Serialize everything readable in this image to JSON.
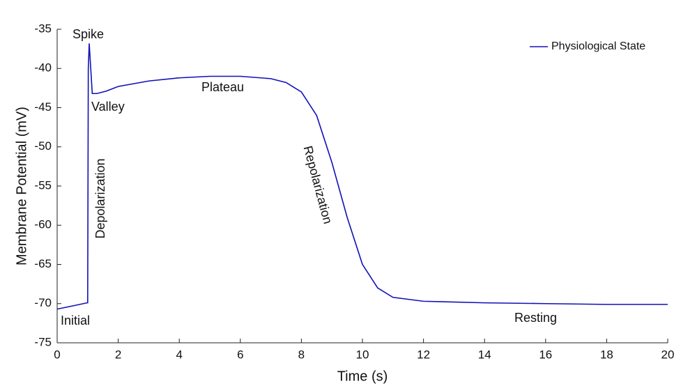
{
  "chart_data": {
    "type": "line",
    "x_label": "Time (s)",
    "y_label": "Membrane Potential (mV)",
    "x": [
      0,
      0.5,
      0.98,
      1.0,
      1.02,
      1.05,
      1.1,
      1.15,
      1.3,
      1.6,
      2,
      3,
      4,
      5,
      6,
      7,
      7.5,
      8,
      8.5,
      9,
      9.5,
      10,
      10.5,
      11,
      12,
      14,
      16,
      18,
      20
    ],
    "series": [
      {
        "name": "Physiological State",
        "color": "#1010b8",
        "values": [
          -70.7,
          -70.3,
          -69.9,
          -69.9,
          -40,
          -36.8,
          -40,
          -43.2,
          -43.2,
          -42.9,
          -42.3,
          -41.6,
          -41.2,
          -41.0,
          -41.0,
          -41.3,
          -41.8,
          -43,
          -46,
          -52,
          -59,
          -65,
          -68,
          -69.2,
          -69.7,
          -69.9,
          -70.0,
          -70.1,
          -70.1
        ]
      }
    ],
    "annotations": [
      "Spike",
      "Valley",
      "Plateau",
      "Depolarization",
      "Repolarization",
      "Initial",
      "Resting"
    ],
    "xlim": [
      0,
      20
    ],
    "xticks": [
      0,
      2,
      4,
      6,
      8,
      10,
      12,
      14,
      16,
      18,
      20
    ],
    "ylim": [
      -75,
      -35
    ],
    "yticks": [
      -75,
      -70,
      -65,
      -60,
      -55,
      -50,
      -45,
      -40,
      -35
    ],
    "legend": "upper right"
  }
}
